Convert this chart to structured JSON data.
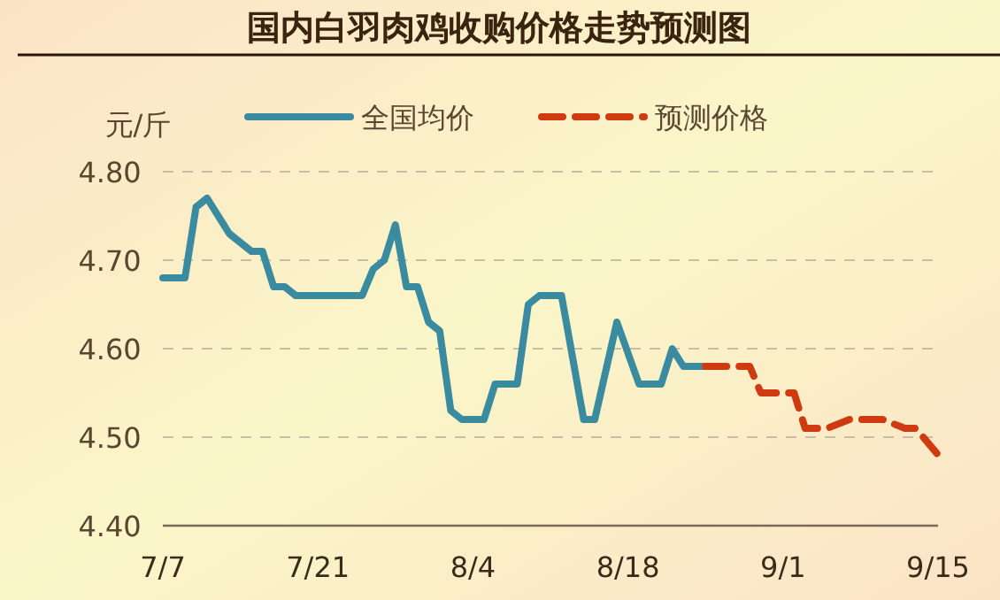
{
  "chart_data": {
    "type": "line",
    "title": "国内白羽肉鸡收购价格走势预测图",
    "ylabel": "元/斤",
    "xlim": [
      "--07-07",
      "--09-15"
    ],
    "xticks": [
      {
        "value": "--07-07",
        "label": "7/7"
      },
      {
        "value": "--07-21",
        "label": "7/21"
      },
      {
        "value": "--08-04",
        "label": "8/4"
      },
      {
        "value": "--08-18",
        "label": "8/18"
      },
      {
        "value": "--09-01",
        "label": "9/1"
      },
      {
        "value": "--09-15",
        "label": "9/15"
      }
    ],
    "ylim": [
      4.4,
      4.8
    ],
    "yticks": [
      {
        "value": 4.4,
        "label": "4.40"
      },
      {
        "value": 4.5,
        "label": "4.50"
      },
      {
        "value": 4.6,
        "label": "4.60"
      },
      {
        "value": 4.7,
        "label": "4.70"
      },
      {
        "value": 4.8,
        "label": "4.80"
      }
    ],
    "grid": "y",
    "legend": "top",
    "series": [
      {
        "name": "全国均价",
        "color": "#3a8aa0",
        "line_style": "solid",
        "x": [
          "--07-07",
          "--07-09",
          "--07-10",
          "--07-11",
          "--07-13",
          "--07-14",
          "--07-15",
          "--07-16",
          "--07-17",
          "--07-18",
          "--07-19",
          "--07-25",
          "--07-26",
          "--07-27",
          "--07-28",
          "--07-29",
          "--07-30",
          "--07-31",
          "--08-01",
          "--08-02",
          "--08-03",
          "--08-05",
          "--08-06",
          "--08-08",
          "--08-09",
          "--08-10",
          "--08-12",
          "--08-14",
          "--08-15",
          "--08-17",
          "--08-19",
          "--08-21",
          "--08-22",
          "--08-23",
          "--08-25"
        ],
        "values": [
          4.68,
          4.68,
          4.76,
          4.77,
          4.73,
          4.72,
          4.71,
          4.71,
          4.67,
          4.67,
          4.66,
          4.66,
          4.69,
          4.7,
          4.74,
          4.67,
          4.67,
          4.63,
          4.62,
          4.53,
          4.52,
          4.52,
          4.56,
          4.56,
          4.65,
          4.66,
          4.66,
          4.52,
          4.52,
          4.63,
          4.56,
          4.56,
          4.6,
          4.58,
          4.58
        ]
      },
      {
        "name": "预测价格",
        "color": "#d03a10",
        "line_style": "dashed",
        "x": [
          "--08-25",
          "--08-29",
          "--08-30",
          "--09-02",
          "--09-03",
          "--09-05",
          "--09-07",
          "--09-10",
          "--09-12",
          "--09-13",
          "--09-15"
        ],
        "values": [
          4.58,
          4.58,
          4.55,
          4.55,
          4.51,
          4.51,
          4.52,
          4.52,
          4.51,
          4.51,
          4.48
        ]
      }
    ]
  }
}
